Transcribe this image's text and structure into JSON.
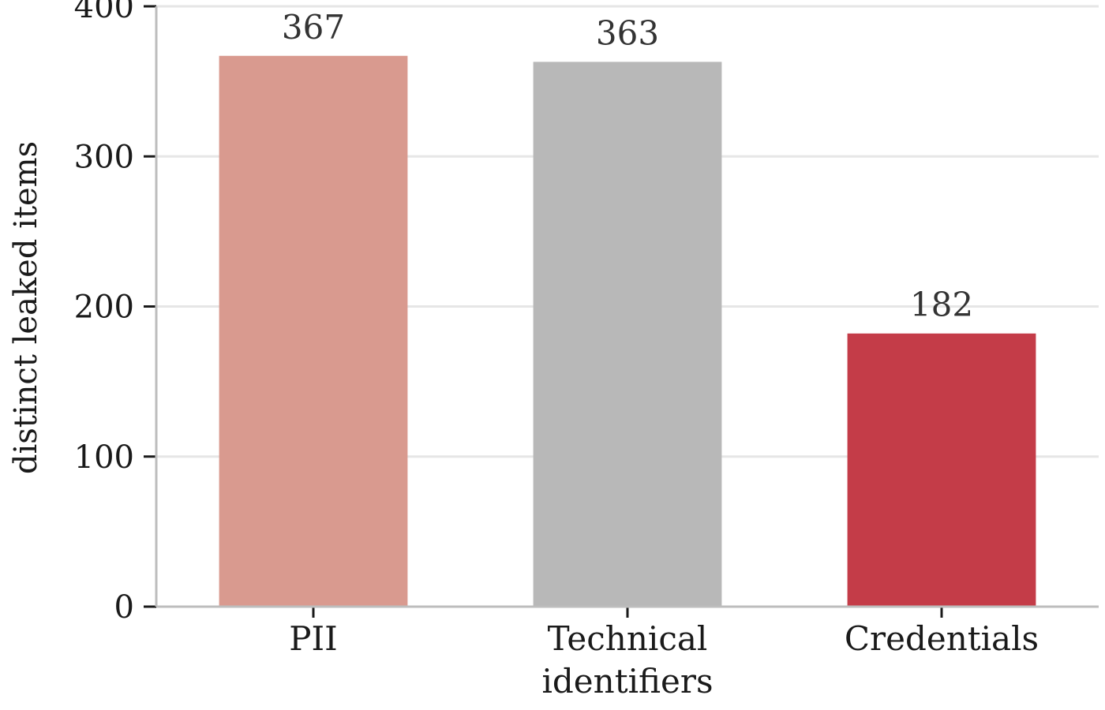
{
  "chart_data": {
    "type": "bar",
    "categories": [
      [
        "PII"
      ],
      [
        "Technical",
        "identifiers"
      ],
      [
        "Credentials"
      ]
    ],
    "values": [
      367,
      363,
      182
    ],
    "bar_colors": [
      "#d99a8f",
      "#b8b8b8",
      "#c43c48"
    ],
    "ylabel": "distinct leaked items",
    "xlabel": "",
    "title": "",
    "ylim": [
      0,
      400
    ],
    "yticks": [
      0,
      100,
      200,
      300,
      400
    ],
    "grid": "horizontal",
    "data_labels": true
  }
}
